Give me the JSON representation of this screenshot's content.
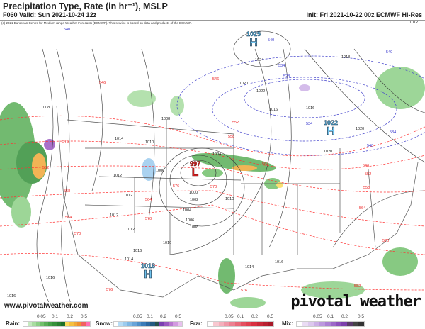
{
  "header": {
    "title": "Precipitation Type, Rate (in hr⁻¹), MSLP",
    "valid": "F060 Valid: Sun 2021-10-24 12z",
    "init": "Init: Fri 2021-10-22 00z ECMWF Hi-Res"
  },
  "map": {
    "copyright": "(c) 2021 European Centre for Medium-range Weather Forecasts (ECMWF). This service is based on data and products of the ECMWF.",
    "website": "www.pivotalweather.com",
    "logo": "pivotal weather",
    "centers": [
      {
        "type": "H",
        "pressure": "1025"
      },
      {
        "type": "H",
        "pressure": "1022"
      },
      {
        "type": "L",
        "pressure": "997"
      },
      {
        "type": "H",
        "pressure": "1018"
      }
    ],
    "isobar_labels": [
      "1024",
      "1022",
      "1020",
      "1018",
      "1016",
      "1016",
      "1020",
      "1020",
      "1012",
      "1014",
      "1012",
      "1010",
      "1008",
      "1006",
      "1012",
      "1012",
      "1000",
      "1002",
      "1004",
      "1006",
      "1008",
      "1010",
      "1010",
      "1016",
      "1014",
      "1014",
      "1016",
      "1016",
      "1004",
      "1012",
      "1008",
      "1016"
    ],
    "thickness_labels_red": [
      "546",
      "546",
      "552",
      "558",
      "564",
      "570",
      "576",
      "546",
      "552",
      "558",
      "564",
      "570",
      "576",
      "552",
      "558",
      "564",
      "570",
      "576",
      "564",
      "570",
      "582",
      "576"
    ],
    "thickness_labels_blue": [
      "540",
      "534",
      "528",
      "534",
      "540",
      "534",
      "540",
      "540"
    ]
  },
  "legend": {
    "rain": {
      "label": "Rain:",
      "ticks": [
        "0.05",
        "0.1",
        "0.2",
        "0.5"
      ],
      "colors": [
        "#fff",
        "#c6e9c0",
        "#a8dca0",
        "#8ccf86",
        "#72c06c",
        "#5aae58",
        "#44a046",
        "#35903a",
        "#288030",
        "#1e7028",
        "#fadb5a",
        "#f5c040",
        "#f0a838",
        "#ee9030",
        "#f06060",
        "#ff6eb4"
      ]
    },
    "snow": {
      "label": "Snow:",
      "ticks": [
        "0.05",
        "0.1",
        "0.2",
        "0.5"
      ],
      "colors": [
        "#fff",
        "#b8dcf5",
        "#9ccbee",
        "#80b8e4",
        "#68a4d8",
        "#5090c8",
        "#3c7cb8",
        "#2c68a0",
        "#235a80",
        "#24504c",
        "#7a40b0",
        "#9a58c0",
        "#b878d0",
        "#d29ae0",
        "#e8c0ef"
      ]
    },
    "frzr": {
      "label": "Frzr:",
      "ticks": [
        "0.05",
        "0.1",
        "0.2",
        "0.5"
      ],
      "colors": [
        "#fff",
        "#f8c8d0",
        "#f4b0bc",
        "#f098a8",
        "#ec8090",
        "#e86878",
        "#e45060",
        "#e04050",
        "#d83040",
        "#c82838",
        "#b82030",
        "#a81828"
      ]
    },
    "mix": {
      "label": "Mix:",
      "ticks": [
        "0.05",
        "0.1",
        "0.2",
        "0.5"
      ],
      "colors": [
        "#fff",
        "#eadcf4",
        "#dcc8ee",
        "#ccb0e6",
        "#bc98de",
        "#ac80d4",
        "#9c68c8",
        "#8c50bc",
        "#7c40ac",
        "#5a3a6a",
        "#444",
        "#333"
      ]
    }
  }
}
